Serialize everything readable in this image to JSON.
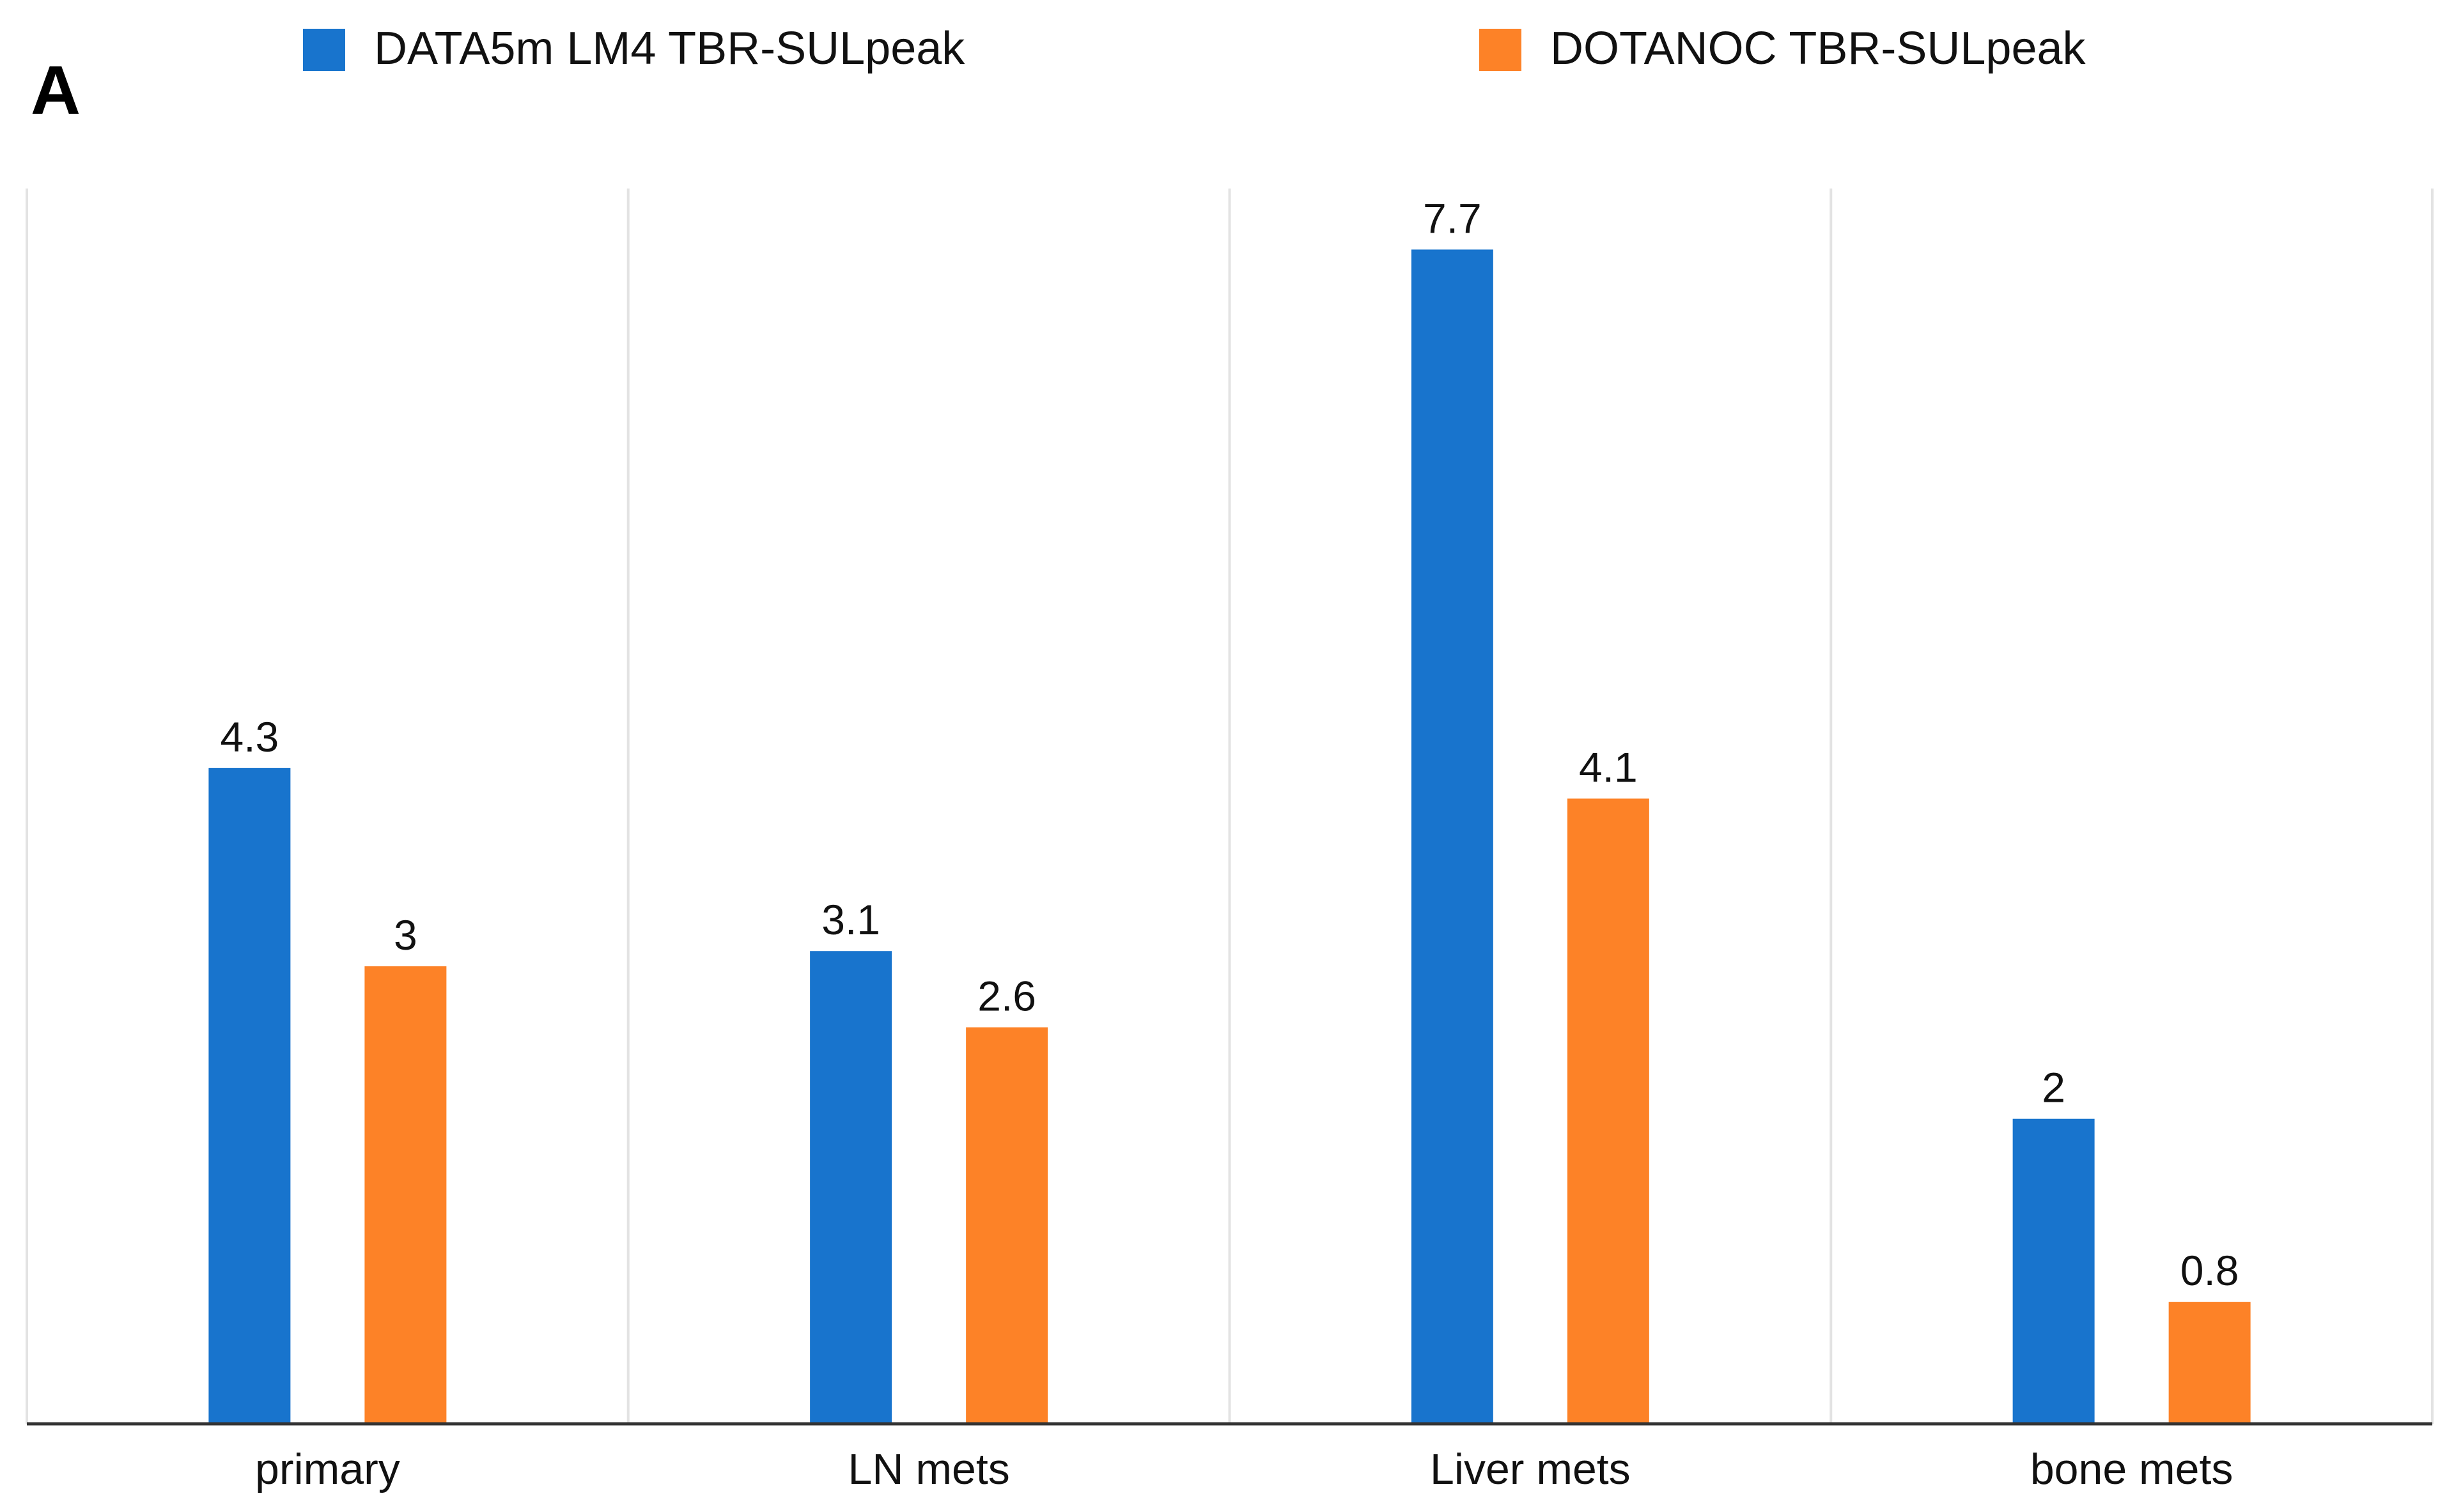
{
  "chart_data": {
    "type": "bar",
    "panel_label": "A",
    "title": "",
    "xlabel": "",
    "ylabel": "",
    "categories": [
      "primary",
      "LN mets",
      "Liver mets",
      "bone mets"
    ],
    "series": [
      {
        "name": "DATA5m LM4 TBR-SULpeak",
        "color": "#1874cd",
        "values": [
          4.3,
          3.1,
          7.7,
          2
        ],
        "labels": [
          "4.3",
          "3.1",
          "7.7",
          "2"
        ]
      },
      {
        "name": "DOTANOC TBR-SULpeak",
        "color": "#fd8227",
        "values": [
          3,
          2.6,
          4.1,
          0.8
        ],
        "labels": [
          "3",
          "2.6",
          "4.1",
          "0.8"
        ]
      }
    ],
    "ylim": [
      0,
      8.1
    ],
    "grid": "vertical category separators",
    "legend": "top"
  }
}
